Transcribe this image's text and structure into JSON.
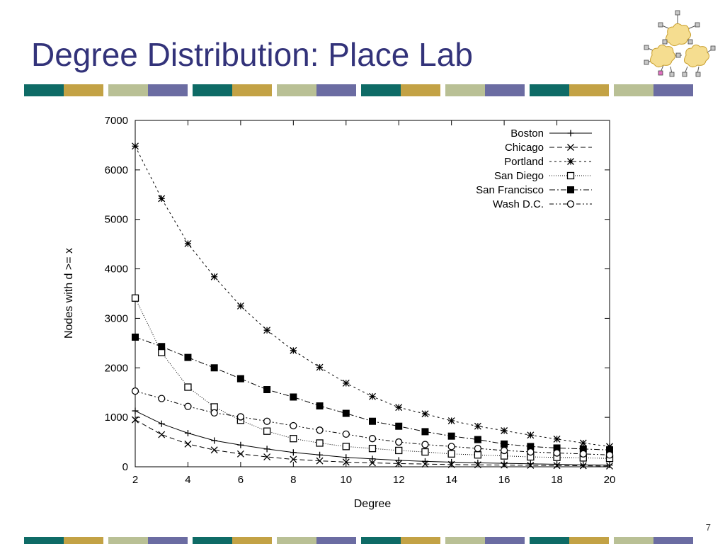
{
  "slide": {
    "title": "Degree Distribution: Place Lab",
    "page_number": "7"
  },
  "theme": {
    "title_color": "#33337a",
    "stripe_colors": [
      "#0e6b66",
      "#c3a245",
      "#b9c095",
      "#6b6ca2"
    ]
  },
  "logo": {
    "icon": "network-clouds-icon"
  },
  "chart_data": {
    "type": "line",
    "xlabel": "Degree",
    "ylabel": "Nodes with d >= x",
    "xlim": [
      2,
      20
    ],
    "ylim": [
      0,
      7000
    ],
    "xticks": [
      2,
      4,
      6,
      8,
      10,
      12,
      14,
      16,
      18,
      20
    ],
    "yticks": [
      0,
      1000,
      2000,
      3000,
      4000,
      5000,
      6000,
      7000
    ],
    "grid": false,
    "legend_position": "top-right",
    "x": [
      2,
      3,
      4,
      5,
      6,
      7,
      8,
      9,
      10,
      11,
      12,
      13,
      14,
      15,
      16,
      17,
      18,
      19,
      20
    ],
    "series": [
      {
        "name": "Boston",
        "marker": "plus",
        "dash": "",
        "values": [
          1130,
          870,
          680,
          530,
          440,
          360,
          290,
          240,
          190,
          160,
          130,
          110,
          95,
          80,
          70,
          60,
          50,
          40,
          35
        ]
      },
      {
        "name": "Chicago",
        "marker": "x",
        "dash": "7,4",
        "values": [
          950,
          650,
          460,
          340,
          260,
          200,
          150,
          120,
          95,
          80,
          65,
          55,
          45,
          40,
          35,
          30,
          25,
          20,
          15
        ]
      },
      {
        "name": "Portland",
        "marker": "star",
        "dash": "3,4",
        "values": [
          6480,
          5420,
          4510,
          3840,
          3250,
          2760,
          2350,
          2010,
          1690,
          1420,
          1200,
          1070,
          930,
          820,
          730,
          640,
          560,
          480,
          410
        ]
      },
      {
        "name": "San Diego",
        "marker": "square-open",
        "dash": "1,2",
        "values": [
          3410,
          2310,
          1610,
          1210,
          940,
          720,
          570,
          480,
          410,
          370,
          330,
          300,
          260,
          240,
          220,
          200,
          190,
          180,
          170
        ]
      },
      {
        "name": "San Francisco",
        "marker": "square-filled",
        "dash": "8,3,2,3",
        "values": [
          2620,
          2430,
          2210,
          2000,
          1780,
          1560,
          1410,
          1230,
          1080,
          920,
          820,
          710,
          620,
          550,
          460,
          410,
          380,
          360,
          340
        ]
      },
      {
        "name": "Wash D.C.",
        "marker": "circle-open",
        "dash": "6,3,2,3,2,3",
        "values": [
          1530,
          1380,
          1220,
          1090,
          1010,
          920,
          830,
          740,
          660,
          570,
          500,
          450,
          410,
          370,
          330,
          300,
          280,
          260,
          240
        ]
      }
    ]
  }
}
